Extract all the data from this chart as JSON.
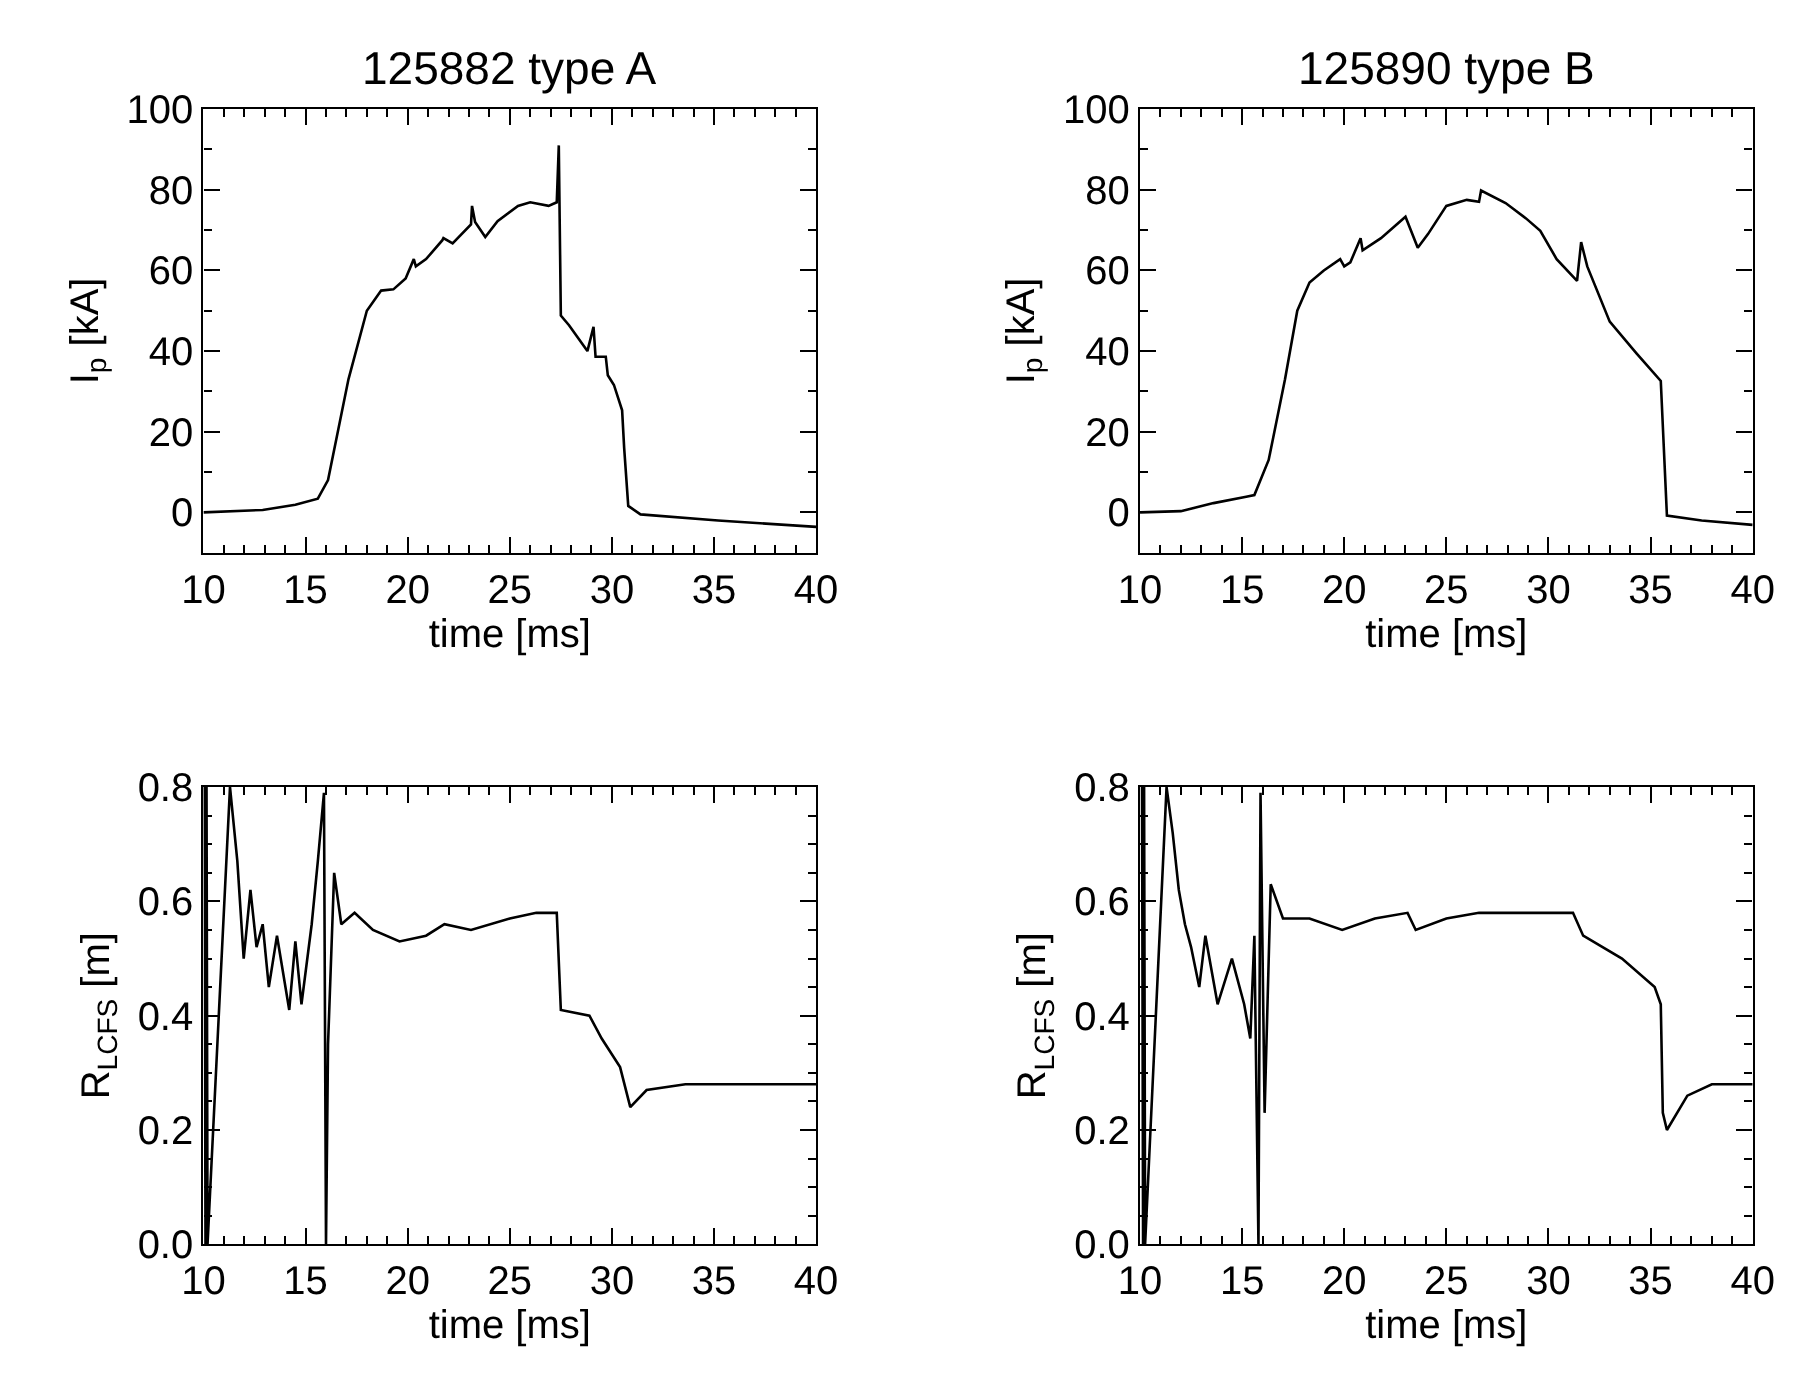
{
  "chart_data": [
    {
      "type": "line",
      "title": "125882 type A",
      "xlabel": "time [ms]",
      "ylabel": "I$_{p}$ [kA]",
      "xlim": [
        10,
        40
      ],
      "xticks": [
        10,
        15,
        20,
        25,
        30,
        35,
        40
      ],
      "ylim": [
        -10,
        100
      ],
      "yticks": [
        0,
        20,
        40,
        60,
        80,
        100
      ],
      "marker": "none",
      "line_style": "solid",
      "series": [
        {
          "color": "#000000",
          "x": [
            10,
            12.9,
            14.5,
            15.6,
            16.1,
            17.1,
            18.0,
            18.7,
            19.3,
            19.9,
            20.3,
            20.4,
            20.9,
            21.7,
            21.75,
            22.2,
            23.1,
            23.15,
            23.3,
            23.8,
            24.4,
            25.4,
            26.0,
            26.9,
            27.3,
            27.4,
            27.5,
            27.9,
            28.8,
            29.1,
            29.2,
            29.7,
            29.8,
            30.1,
            30.5,
            30.6,
            30.8,
            31.4,
            35.2,
            40
          ],
          "values": [
            0,
            0.6,
            1.9,
            3.4,
            8,
            33,
            50,
            55,
            55.3,
            58,
            62.8,
            61,
            62.8,
            67.5,
            68,
            66.7,
            71.4,
            76,
            72,
            68.3,
            72.2,
            76,
            76.9,
            76,
            76.9,
            91,
            48.8,
            46.4,
            40,
            46,
            38.6,
            38.6,
            34,
            31.6,
            25.3,
            16,
            1.6,
            -0.5,
            -2,
            -3.6
          ]
        }
      ]
    },
    {
      "type": "line",
      "title": "125890 type B",
      "xlabel": "time [ms]",
      "ylabel": "I$_{p}$ [kA]",
      "xlim": [
        10,
        40
      ],
      "xticks": [
        10,
        15,
        20,
        25,
        30,
        35,
        40
      ],
      "ylim": [
        -10,
        100
      ],
      "yticks": [
        0,
        20,
        40,
        60,
        80,
        100
      ],
      "marker": "none",
      "line_style": "solid",
      "series": [
        {
          "color": "#000000",
          "x": [
            10,
            12,
            13.6,
            15.2,
            15.6,
            16.3,
            17.1,
            17.7,
            18.3,
            19.0,
            19.8,
            20.0,
            20.3,
            20.8,
            20.9,
            21.8,
            23.0,
            23.6,
            24.1,
            25.0,
            26.0,
            26.6,
            26.7,
            27.9,
            28.9,
            29.6,
            30.4,
            31.4,
            31.6,
            31.9,
            33.0,
            34.3,
            35.5,
            35.8,
            37.5,
            40
          ],
          "values": [
            0,
            0.3,
            2.3,
            3.9,
            4.3,
            13,
            33,
            50,
            57,
            60,
            62.8,
            61,
            62,
            68,
            65,
            68,
            73.3,
            65.6,
            69,
            76,
            77.5,
            77,
            79.8,
            76.7,
            72.9,
            69.8,
            62.8,
            57.4,
            67,
            61,
            47.3,
            39.5,
            32.6,
            -0.8,
            -2,
            -3.1
          ]
        }
      ]
    },
    {
      "type": "line",
      "xlabel": "time [ms]",
      "ylabel": "R$_{LCFS}$ [m]",
      "xlim": [
        10,
        40
      ],
      "xticks": [
        10,
        15,
        20,
        25,
        30,
        35,
        40
      ],
      "ylim": [
        0,
        0.8
      ],
      "yticks": [
        {
          "value": 0,
          "label": "0.0"
        },
        0.2,
        0.4,
        0.6,
        0.8
      ],
      "marker": "none",
      "line_style": "solid",
      "series": [
        {
          "color": "#000000",
          "x": [
            10.05,
            10.1,
            10.15,
            10.2,
            11.3,
            11.66,
            11.97,
            12.3,
            12.6,
            12.9,
            13.2,
            13.6,
            14.2,
            14.5,
            14.8,
            15.3,
            15.6,
            15.9,
            16.0,
            16.1,
            16.4,
            16.75,
            17.4,
            18.3,
            19.6,
            20.9,
            21.8,
            23.1,
            25.0,
            26.3,
            27.3,
            27.5,
            28.9,
            29.5,
            30.4,
            30.9,
            31.7,
            33.6,
            36.8,
            40
          ],
          "values": [
            0.8,
            0.0,
            0.8,
            0.0,
            0.8,
            0.67,
            0.5,
            0.62,
            0.52,
            0.56,
            0.45,
            0.54,
            0.41,
            0.53,
            0.42,
            0.56,
            0.67,
            0.79,
            0.0,
            0.35,
            0.65,
            0.56,
            0.58,
            0.55,
            0.53,
            0.54,
            0.56,
            0.55,
            0.57,
            0.58,
            0.58,
            0.41,
            0.4,
            0.36,
            0.31,
            0.24,
            0.27,
            0.28,
            0.28,
            0.28
          ]
        }
      ]
    },
    {
      "type": "line",
      "xlabel": "time [ms]",
      "ylabel": "R$_{LCFS}$ [m]",
      "xlim": [
        10,
        40
      ],
      "xticks": [
        10,
        15,
        20,
        25,
        30,
        35,
        40
      ],
      "ylim": [
        0,
        0.8
      ],
      "yticks": [
        {
          "value": 0,
          "label": "0.0"
        },
        0.2,
        0.4,
        0.6,
        0.8
      ],
      "marker": "none",
      "line_style": "solid",
      "series": [
        {
          "color": "#000000",
          "x": [
            10.1,
            10.15,
            10.2,
            10.25,
            11.3,
            11.6,
            11.9,
            12.2,
            12.5,
            12.9,
            13.2,
            13.8,
            14.5,
            15.1,
            15.4,
            15.6,
            15.8,
            15.9,
            16.1,
            16.4,
            17.0,
            18.3,
            19.9,
            21.5,
            23.1,
            23.5,
            25.0,
            26.6,
            29.4,
            31.2,
            31.7,
            33.6,
            35.2,
            35.5,
            35.6,
            35.8,
            36.8,
            38.0,
            40
          ],
          "values": [
            0.8,
            0.0,
            0.8,
            0.0,
            0.8,
            0.72,
            0.62,
            0.56,
            0.52,
            0.45,
            0.54,
            0.42,
            0.5,
            0.42,
            0.36,
            0.54,
            0.0,
            0.79,
            0.23,
            0.63,
            0.57,
            0.57,
            0.55,
            0.57,
            0.58,
            0.55,
            0.57,
            0.58,
            0.58,
            0.58,
            0.54,
            0.5,
            0.45,
            0.42,
            0.23,
            0.2,
            0.26,
            0.28,
            0.28
          ]
        }
      ]
    }
  ]
}
